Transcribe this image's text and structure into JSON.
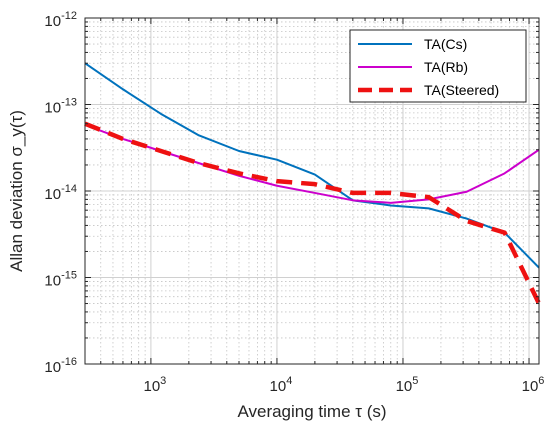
{
  "chart_data": {
    "type": "line",
    "xlabel": "Averaging time τ (s)",
    "ylabel": "Allan deviation σ_y(τ)",
    "x_scale": "log",
    "y_scale": "log",
    "xlim": [
      300,
      1200000
    ],
    "ylim": [
      1e-16,
      1e-12
    ],
    "grid": true,
    "minor_grid": true,
    "legend_position": "top-right",
    "x_ticks": [
      {
        "value": 1000,
        "label": "10^3"
      },
      {
        "value": 10000,
        "label": "10^4"
      },
      {
        "value": 100000,
        "label": "10^5"
      },
      {
        "value": 1000000,
        "label": "10^6"
      }
    ],
    "y_ticks": [
      {
        "value": 1e-16,
        "label": "10^-16"
      },
      {
        "value": 1e-15,
        "label": "10^-15"
      },
      {
        "value": 1e-14,
        "label": "10^-14"
      },
      {
        "value": 1e-13,
        "label": "10^-13"
      },
      {
        "value": 1e-12,
        "label": "10^-12"
      }
    ],
    "series": [
      {
        "name": "TA(Cs)",
        "color": "#0072BD",
        "style": "solid",
        "x": [
          300,
          600,
          1200,
          2400,
          5000,
          10000,
          20000,
          40000,
          80000,
          160000,
          320000,
          640000,
          1200000
        ],
        "y": [
          3e-13,
          1.5e-13,
          7.8e-14,
          4.4e-14,
          2.9e-14,
          2.3e-14,
          1.55e-14,
          7.8e-15,
          6.8e-15,
          6.3e-15,
          4.8e-15,
          3.3e-15,
          1.3e-15
        ]
      },
      {
        "name": "TA(Rb)",
        "color": "#CC00CC",
        "style": "solid",
        "x": [
          300,
          600,
          1200,
          2400,
          5000,
          10000,
          20000,
          40000,
          80000,
          160000,
          320000,
          640000,
          1200000
        ],
        "y": [
          5.8e-14,
          4e-14,
          2.9e-14,
          2.1e-14,
          1.5e-14,
          1.15e-14,
          9.5e-15,
          7.8e-15,
          7.3e-15,
          8e-15,
          9.8e-15,
          1.6e-14,
          3e-14
        ]
      },
      {
        "name": "TA(Steered)",
        "color": "#EE1111",
        "style": "dashed",
        "x": [
          300,
          600,
          1200,
          2400,
          5000,
          10000,
          20000,
          40000,
          80000,
          160000,
          320000,
          640000,
          1200000
        ],
        "y": [
          6e-14,
          4e-14,
          2.9e-14,
          2.1e-14,
          1.6e-14,
          1.3e-14,
          1.2e-14,
          9.5e-15,
          9.5e-15,
          8.5e-15,
          4.5e-15,
          3.3e-15,
          5e-16
        ]
      }
    ]
  }
}
